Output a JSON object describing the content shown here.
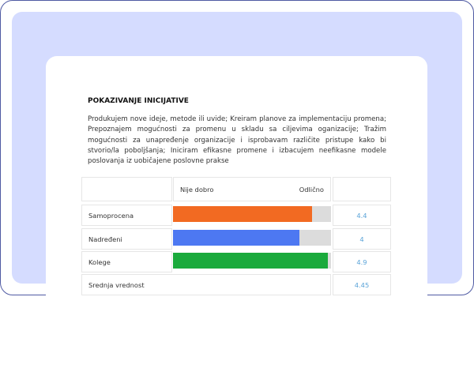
{
  "section": {
    "title": "POKAZIVANJE INICIJATIVE",
    "description": "Produkujem nove ideje, metode ili uvide; Kreiram planove za implementaciju promena; Prepoznajem mogućnosti za promenu u skladu sa ciljevima oganizacije; Tražim mogućnosti za unapređenje organizacije i isprobavam različite pristupe kako bi stvorio/la poboljšanja; Iniciram efikasne promene i izbacujem neefikasne modele poslovanja iz uobičajene poslovne prakse"
  },
  "scale": {
    "min_label": "Nije dobro",
    "max_label": "Odlično",
    "max": 5
  },
  "rows": [
    {
      "label": "Samoprocena",
      "value": "4.4",
      "score": 4.4,
      "color": "#f26a22"
    },
    {
      "label": "Nadređeni",
      "value": "4",
      "score": 4,
      "color": "#4d78f2"
    },
    {
      "label": "Kolege",
      "value": "4.9",
      "score": 4.9,
      "color": "#1aaa3c"
    }
  ],
  "average": {
    "label": "Srednja vrednost",
    "value": "4.45"
  }
}
